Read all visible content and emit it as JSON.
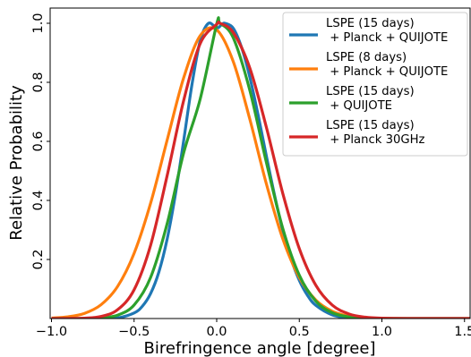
{
  "chart_data": {
    "type": "line",
    "xlabel": "Birefringence angle [degree]",
    "ylabel": "Relative Probability",
    "xlim": [
      -1.0,
      1.6
    ],
    "ylim": [
      0.0,
      1.05
    ],
    "xticks": [
      {
        "value": -1.0,
        "label": "−1.0"
      },
      {
        "value": -0.5,
        "label": "−0.5"
      },
      {
        "value": 0.0,
        "label": "0.0"
      },
      {
        "value": 0.5,
        "label": "0.5"
      },
      {
        "value": 1.0,
        "label": "1.0"
      },
      {
        "value": 1.5,
        "label": "1.5"
      }
    ],
    "yticks": [
      {
        "value": 0.2,
        "label": "0.2"
      },
      {
        "value": 0.4,
        "label": "0.4"
      },
      {
        "value": 0.6,
        "label": "0.6"
      },
      {
        "value": 0.8,
        "label": "0.8"
      },
      {
        "value": 1.0,
        "label": "1.0"
      }
    ],
    "grid": false,
    "legend_position": "top-right",
    "series": [
      {
        "name": "LSPE (15 days)\n + Planck + QUIJOTE",
        "color": "#1f77b4",
        "x": [
          -1.0,
          -0.9,
          -0.8,
          -0.7,
          -0.6,
          -0.5,
          -0.45,
          -0.4,
          -0.35,
          -0.3,
          -0.25,
          -0.2,
          -0.15,
          -0.1,
          -0.05,
          0.0,
          0.03,
          0.05,
          0.1,
          0.15,
          0.2,
          0.25,
          0.3,
          0.35,
          0.4,
          0.45,
          0.5,
          0.55,
          0.6,
          0.7,
          0.8,
          0.9,
          1.0,
          1.2,
          1.4,
          1.6
        ],
        "y": [
          0.0,
          0.0,
          0.0,
          0.0,
          0.002,
          0.0187,
          0.0416,
          0.0846,
          0.1576,
          0.2688,
          0.4202,
          0.6021,
          0.7913,
          0.9404,
          0.9998,
          0.9834,
          0.9953,
          1.0,
          0.9834,
          0.9193,
          0.8187,
          0.6913,
          0.5523,
          0.4184,
          0.2985,
          0.2021,
          0.1294,
          0.0782,
          0.0446,
          0.0122,
          0.0026,
          0.0004,
          0.0,
          0.0,
          0.0,
          0.0
        ]
      },
      {
        "name": "LSPE (8 days)\n + Planck + QUIJOTE",
        "color": "#ff7f0e",
        "x": [
          -1.0,
          -0.9,
          -0.8,
          -0.7,
          -0.6,
          -0.5,
          -0.4,
          -0.3,
          -0.2,
          -0.1,
          0.0,
          0.1,
          0.2,
          0.3,
          0.4,
          0.5,
          0.6,
          0.7,
          0.8,
          0.9,
          1.0,
          1.2,
          1.4,
          1.6
        ],
        "y": [
          0.0017,
          0.0058,
          0.0176,
          0.0468,
          0.1085,
          0.2207,
          0.3906,
          0.6042,
          0.8151,
          0.9579,
          0.9776,
          0.8708,
          0.6761,
          0.4576,
          0.2701,
          0.139,
          0.0624,
          0.0244,
          0.0083,
          0.0025,
          0.0006,
          0.0,
          0.0,
          0.0
        ]
      },
      {
        "name": "LSPE (15 days)\n + QUIJOTE",
        "color": "#2ca02c",
        "x": [
          -1.0,
          -0.9,
          -0.8,
          -0.7,
          -0.6,
          -0.5,
          -0.4,
          -0.3,
          -0.2,
          -0.1,
          0.0,
          0.02,
          0.1,
          0.2,
          0.3,
          0.4,
          0.5,
          0.6,
          0.7,
          0.8,
          0.9,
          1.0,
          1.2,
          1.4,
          1.6
        ],
        "y": [
          0.0,
          0.0,
          0.0003,
          0.0021,
          0.0113,
          0.0456,
          0.1392,
          0.3211,
          0.5611,
          0.7431,
          0.9972,
          1.0,
          0.9511,
          0.7741,
          0.5306,
          0.3052,
          0.1467,
          0.0587,
          0.0195,
          0.0054,
          0.0012,
          0.0002,
          0.0,
          0.0,
          0.0
        ]
      },
      {
        "name": "LSPE (15 days)\n + Planck 30GHz",
        "color": "#d62728",
        "x": [
          -1.0,
          -0.9,
          -0.8,
          -0.7,
          -0.6,
          -0.5,
          -0.4,
          -0.3,
          -0.2,
          -0.1,
          0.0,
          0.02,
          0.1,
          0.2,
          0.3,
          0.4,
          0.5,
          0.6,
          0.7,
          0.8,
          0.9,
          1.0,
          1.2,
          1.4,
          1.6
        ],
        "y": [
          0.0,
          0.0002,
          0.0014,
          0.0072,
          0.0298,
          0.0974,
          0.2484,
          0.4838,
          0.7382,
          0.9311,
          0.9965,
          1.0,
          0.9688,
          0.8493,
          0.6492,
          0.4238,
          0.2369,
          0.1126,
          0.0452,
          0.0156,
          0.0045,
          0.0011,
          0.0,
          0.0,
          0.0
        ]
      }
    ]
  }
}
